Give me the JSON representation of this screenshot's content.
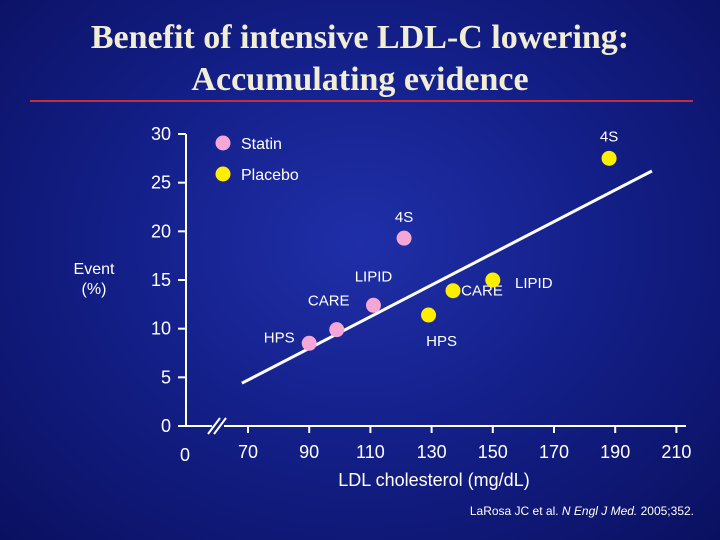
{
  "slide": {
    "title_line1": "Benefit of intensive LDL-C lowering:",
    "title_line2": "Accumulating evidence",
    "citation_pre": "LaRosa JC et al. ",
    "citation_journal": "N Engl J Med.",
    "citation_post": " 2005;352.",
    "colors": {
      "rule": "#c0303a",
      "title": "#f2eed6",
      "statin": "#f4a6d7",
      "placebo": "#ffee00"
    }
  },
  "chart_data": {
    "type": "scatter",
    "xlabel": "LDL cholesterol (mg/dL)",
    "ylabel": [
      "Event",
      "(%)"
    ],
    "xlim": [
      0,
      210
    ],
    "ylim": [
      0,
      30
    ],
    "x_ticks": [
      0,
      70,
      90,
      110,
      130,
      150,
      170,
      190,
      210
    ],
    "y_ticks": [
      0,
      5,
      10,
      15,
      20,
      25,
      30
    ],
    "axis_break": true,
    "grid": false,
    "legend": {
      "position": "top-left",
      "entries": [
        "Statin",
        "Placebo"
      ]
    },
    "series": [
      {
        "name": "Statin",
        "color": "#f4a6d7",
        "points": [
          {
            "label": "HPS",
            "x": 90,
            "y": 8.5
          },
          {
            "label": "CARE",
            "x": 99,
            "y": 9.9
          },
          {
            "label": "LIPID",
            "x": 111,
            "y": 12.4
          },
          {
            "label": "4S",
            "x": 121,
            "y": 19.3
          }
        ]
      },
      {
        "name": "Placebo",
        "color": "#ffee00",
        "points": [
          {
            "label": "HPS",
            "x": 129,
            "y": 11.4
          },
          {
            "label": "CARE",
            "x": 137,
            "y": 13.9
          },
          {
            "label": "LIPID",
            "x": 150,
            "y": 15.0
          },
          {
            "label": "4S",
            "x": 188,
            "y": 27.5
          }
        ]
      }
    ],
    "trendline": {
      "x": [
        68,
        202
      ],
      "y": [
        4.4,
        26.2
      ]
    }
  }
}
